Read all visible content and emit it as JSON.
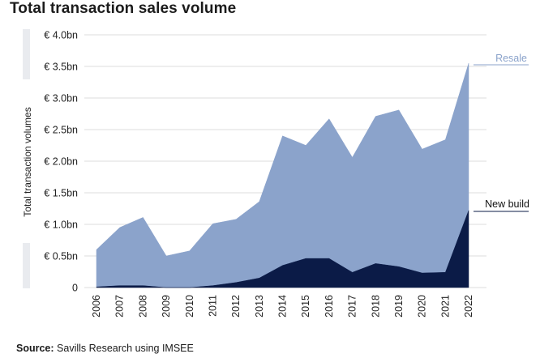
{
  "title": "Total transaction sales volume",
  "source": {
    "label": "Source:",
    "text": "Savills Research using IMSEE"
  },
  "colors": {
    "resale": "#8ba3cb",
    "new_build": "#0b1b47",
    "grid": "#dcdcdc",
    "band": "#e9ebef"
  },
  "chart_data": {
    "type": "area",
    "stacked": true,
    "x": [
      "2006",
      "2007",
      "2008",
      "2009",
      "2010",
      "2011",
      "2012",
      "2013",
      "2014",
      "2015",
      "2016",
      "2017",
      "2018",
      "2019",
      "2020",
      "2021",
      "2022"
    ],
    "series": [
      {
        "name": "New build",
        "values": [
          0.01,
          0.03,
          0.03,
          0.0,
          0.0,
          0.03,
          0.08,
          0.15,
          0.35,
          0.46,
          0.46,
          0.24,
          0.38,
          0.33,
          0.23,
          0.24,
          1.22
        ]
      },
      {
        "name": "Resale",
        "values": [
          0.59,
          0.92,
          1.08,
          0.5,
          0.58,
          0.98,
          1.0,
          1.21,
          2.05,
          1.79,
          2.21,
          1.82,
          2.33,
          2.48,
          1.96,
          2.1,
          2.33
        ]
      }
    ],
    "ylabel": "Total transaction volumes",
    "ylim": [
      0,
      4.0
    ],
    "yticks": [
      0,
      0.5,
      1.0,
      1.5,
      2.0,
      2.5,
      3.0,
      3.5,
      4.0
    ],
    "ytick_labels": [
      "0",
      "€ 0.5bn",
      "€ 1.0bn",
      "€ 1.5bn",
      "€ 2.0bn",
      "€ 2.5bn",
      "€ 3.0bn",
      "€ 3.5bn",
      "€ 4.0bn"
    ],
    "grid": true,
    "legend": "direct-labels-right"
  }
}
